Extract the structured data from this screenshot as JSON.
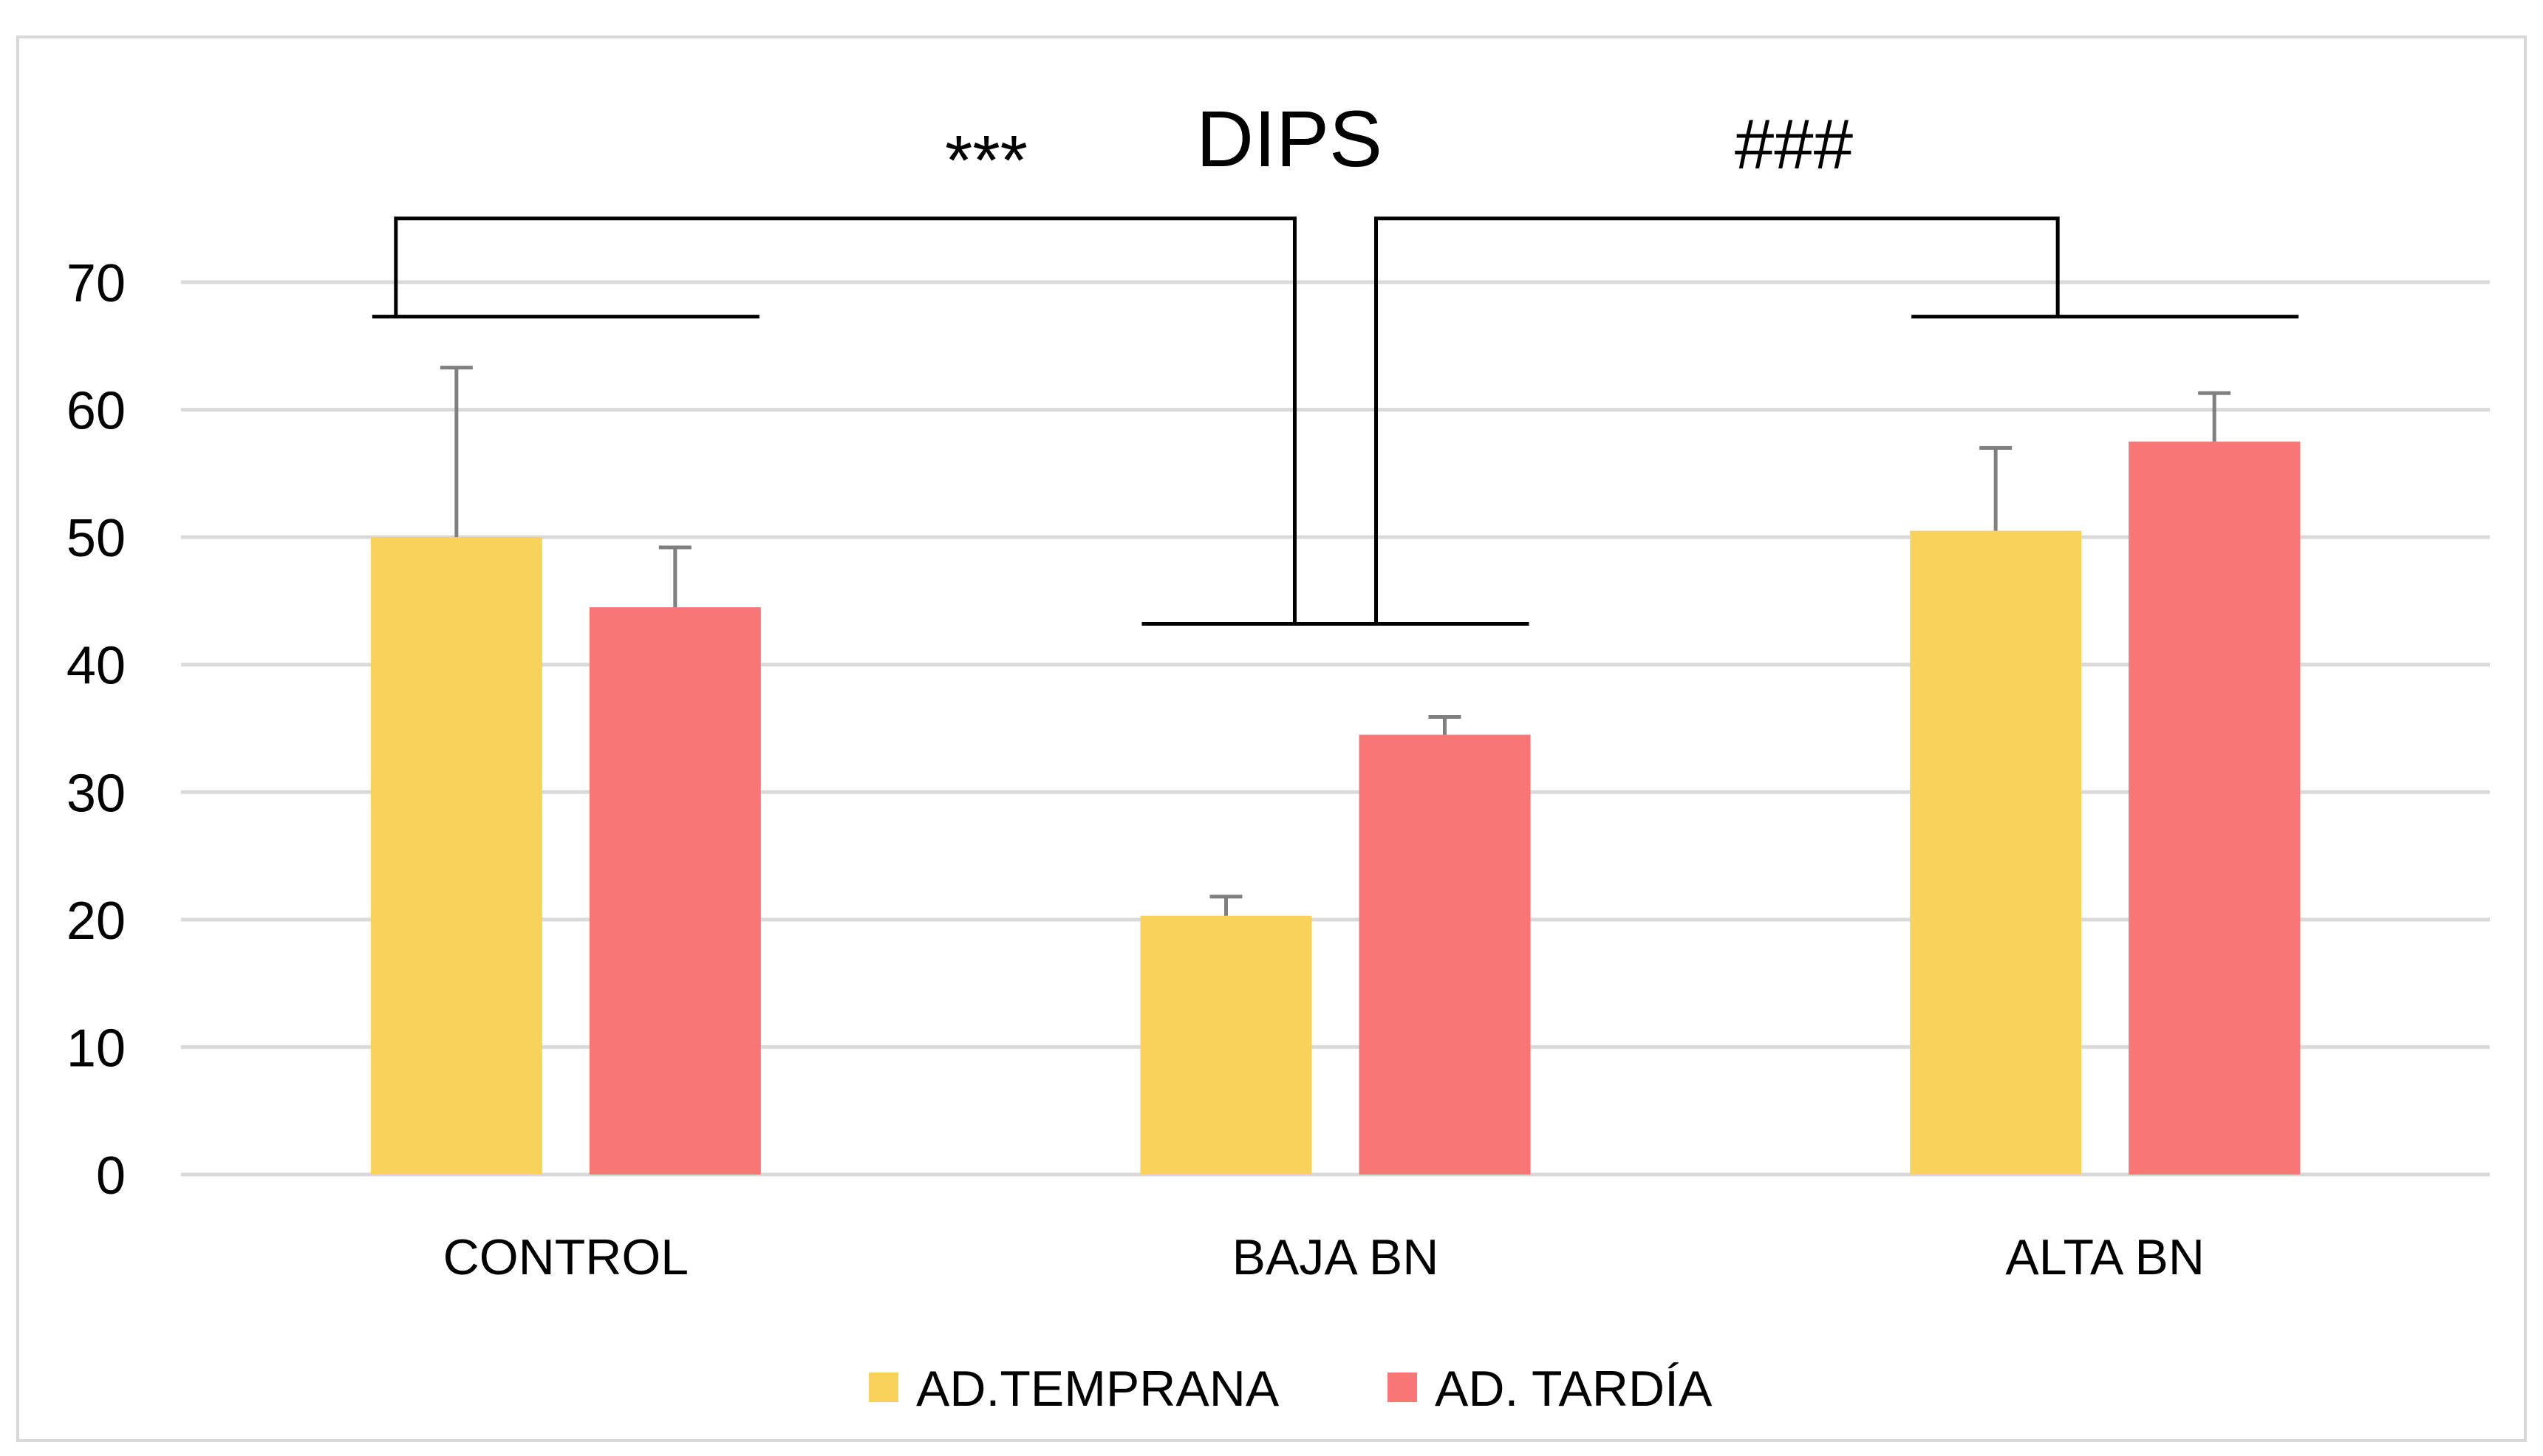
{
  "chart_data": {
    "type": "bar",
    "title": "DIPS",
    "categories": [
      "CONTROL",
      "BAJA BN",
      "ALTA BN"
    ],
    "series": [
      {
        "name": "AD.TEMPRANA",
        "color": "#F9D25C",
        "values": [
          50,
          20.3,
          50.5
        ],
        "errors": [
          13.3,
          1.5,
          6.5
        ]
      },
      {
        "name": "AD. TARDÍA",
        "color": "#F97677",
        "values": [
          44.5,
          34.5,
          57.5
        ],
        "errors": [
          4.7,
          1.4,
          3.8
        ]
      }
    ],
    "ylim": [
      0,
      70
    ],
    "yticks": [
      0,
      10,
      20,
      30,
      40,
      50,
      60,
      70
    ],
    "grid": true,
    "legend_position": "bottom",
    "annotations": [
      {
        "text": "***",
        "between": [
          "CONTROL",
          "BAJA BN"
        ]
      },
      {
        "text": "###",
        "between": [
          "BAJA BN",
          "ALTA BN"
        ]
      }
    ]
  }
}
